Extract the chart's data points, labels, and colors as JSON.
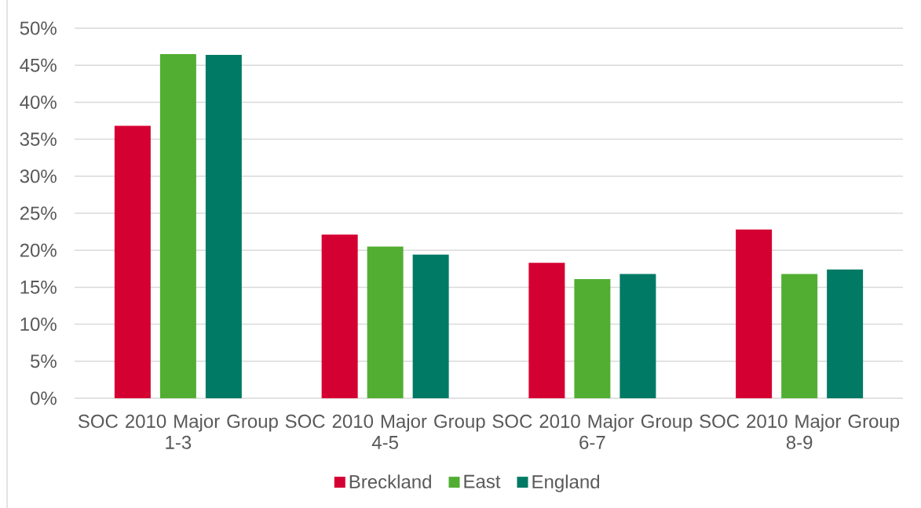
{
  "chart_data": {
    "type": "bar",
    "categories": [
      "SOC 2010 Major Group 1-3",
      "SOC 2010 Major Group 4-5",
      "SOC 2010 Major Group 6-7",
      "SOC 2010 Major Group 8-9"
    ],
    "series": [
      {
        "name": "Breckland",
        "color": "#d50032",
        "values": [
          36.8,
          22.1,
          18.3,
          22.8
        ]
      },
      {
        "name": "East",
        "color": "#52ae32",
        "values": [
          46.5,
          20.5,
          16.1,
          16.8
        ]
      },
      {
        "name": "England",
        "color": "#007a64",
        "values": [
          46.4,
          19.4,
          16.8,
          17.4
        ]
      }
    ],
    "ylim": [
      0,
      50
    ],
    "yticks": [
      {
        "value": 0,
        "label": "0%"
      },
      {
        "value": 5,
        "label": "5%"
      },
      {
        "value": 10,
        "label": "10%"
      },
      {
        "value": 15,
        "label": "15%"
      },
      {
        "value": 20,
        "label": "20%"
      },
      {
        "value": 25,
        "label": "25%"
      },
      {
        "value": 30,
        "label": "30%"
      },
      {
        "value": 35,
        "label": "35%"
      },
      {
        "value": 40,
        "label": "40%"
      },
      {
        "value": 45,
        "label": "45%"
      },
      {
        "value": 50,
        "label": "50%"
      }
    ],
    "grid": "y",
    "legend": "bottom"
  }
}
